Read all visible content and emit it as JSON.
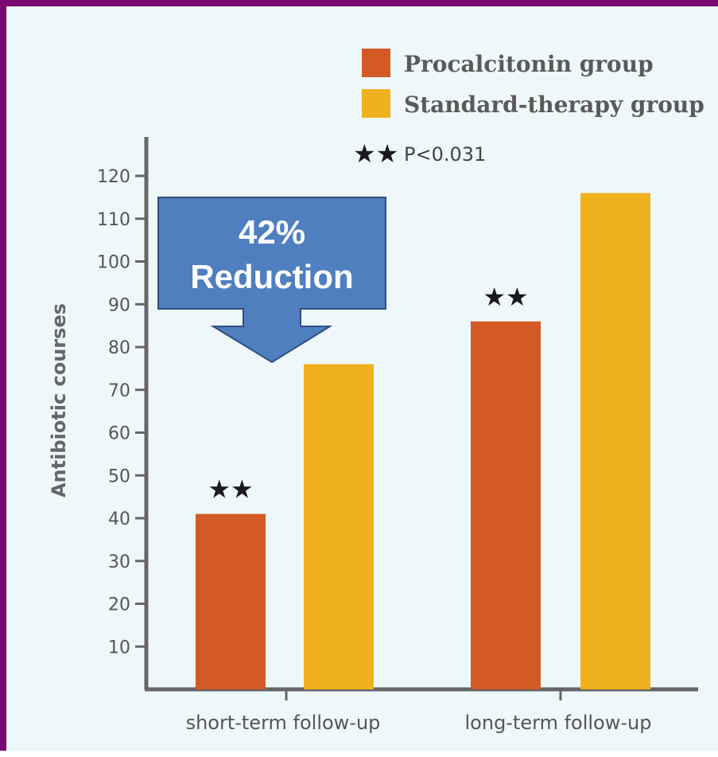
{
  "chart_data": {
    "type": "bar",
    "ylabel": "Antibiotic courses",
    "ylim": [
      0,
      126
    ],
    "yticks": [
      10,
      20,
      30,
      40,
      50,
      60,
      70,
      80,
      90,
      100,
      110,
      120
    ],
    "categories": [
      "short-term  follow-up",
      "long-term  follow-up"
    ],
    "series": [
      {
        "name": "Procalcitonin group",
        "color": "#d35a25",
        "values": [
          41,
          86
        ]
      },
      {
        "name": "Standard-therapy group",
        "color": "#f0b11e",
        "values": [
          76,
          116
        ]
      }
    ],
    "significance": {
      "marker": "★★",
      "label": "P<0.031"
    },
    "legend_position": "top-right"
  },
  "callout": {
    "line1": "42%",
    "line2": "Reduction",
    "color": "#4f7fbf",
    "border": "#2f4f80"
  }
}
